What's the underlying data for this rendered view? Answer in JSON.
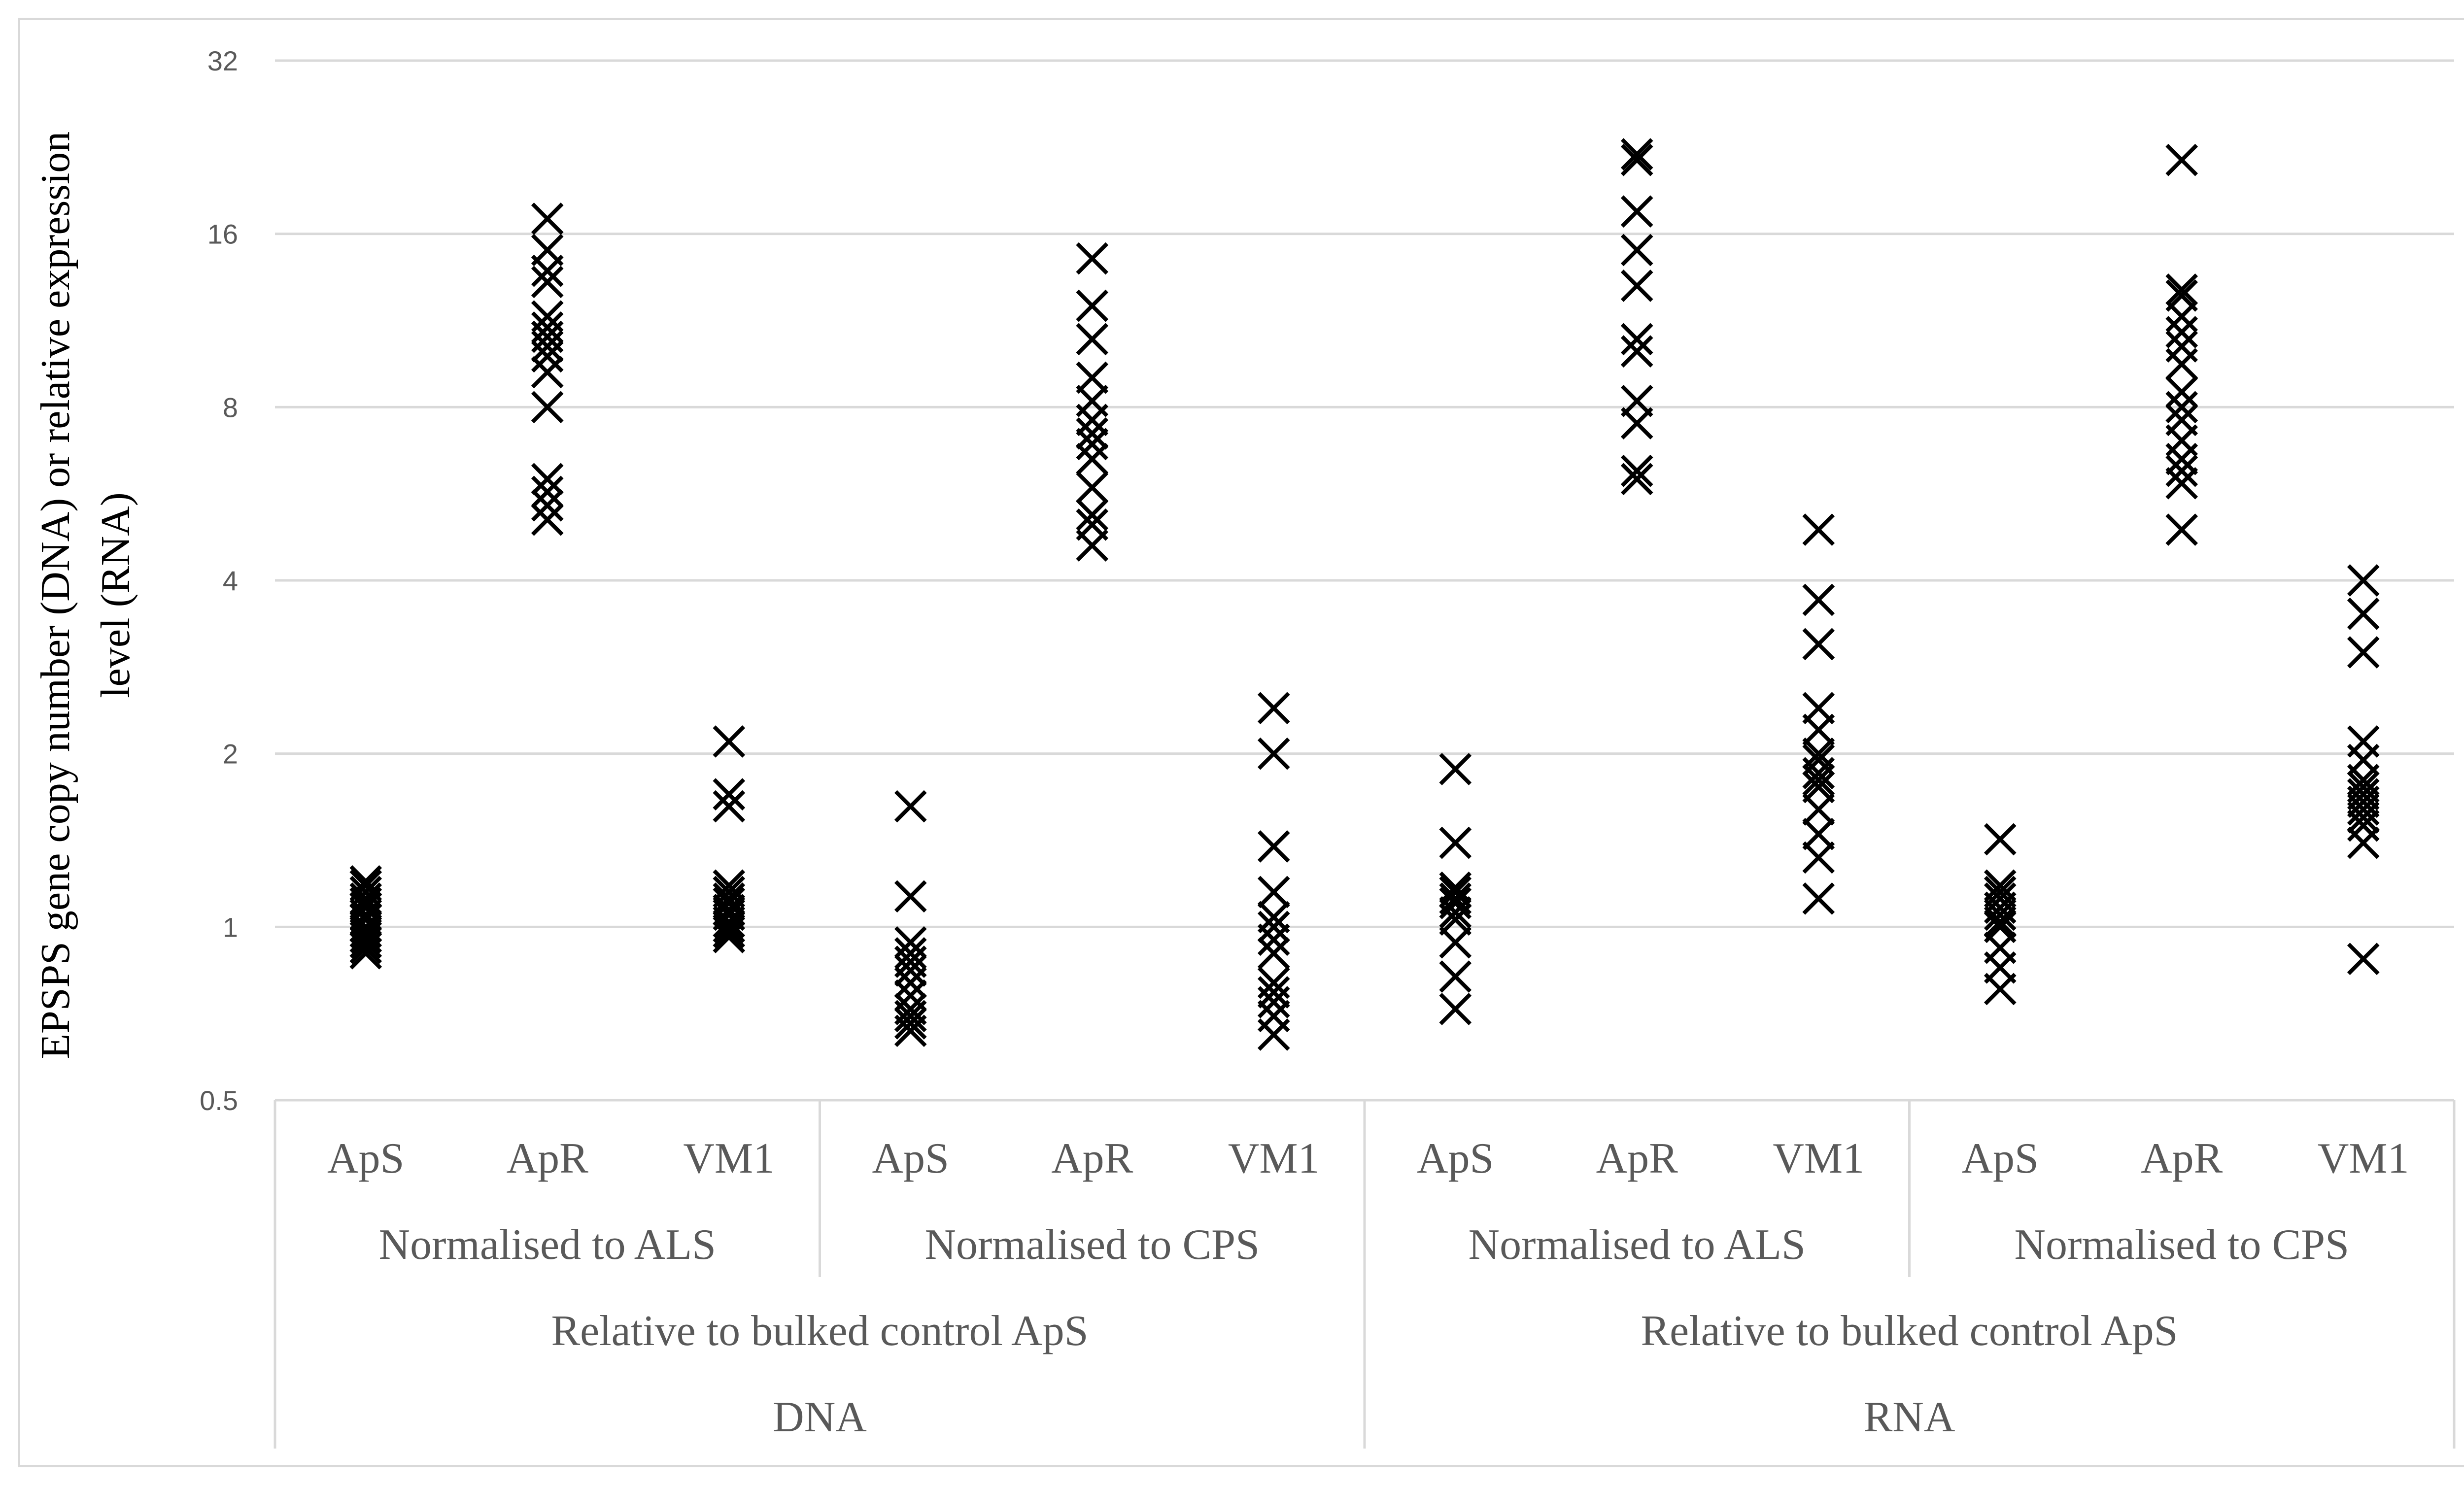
{
  "chart_data": {
    "type": "scatter",
    "marker": "x",
    "ylabel": "EPSPS gene copy number (DNA) or relative expression level (RNA)",
    "ylabel_lines": [
      "EPSPS gene copy number (DNA) or relative expression",
      "level (RNA)"
    ],
    "yscale": "log2",
    "ylim": [
      0.5,
      32
    ],
    "yticks": [
      0.5,
      1,
      2,
      4,
      8,
      16,
      32
    ],
    "ytick_labels": [
      "0.5",
      "1",
      "2",
      "4",
      "8",
      "16",
      "32"
    ],
    "grid": true,
    "x_categories": [
      {
        "label": "ApS",
        "normalisation": "Normalised to ALS",
        "reference": "Relative to bulked control ApS",
        "type": "DNA"
      },
      {
        "label": "ApR",
        "normalisation": "Normalised to ALS",
        "reference": "Relative to bulked control ApS",
        "type": "DNA"
      },
      {
        "label": "VM1",
        "normalisation": "Normalised to ALS",
        "reference": "Relative to bulked control ApS",
        "type": "DNA"
      },
      {
        "label": "ApS",
        "normalisation": "Normalised to CPS",
        "reference": "Relative to bulked control ApS",
        "type": "DNA"
      },
      {
        "label": "ApR",
        "normalisation": "Normalised to CPS",
        "reference": "Relative to bulked control ApS",
        "type": "DNA"
      },
      {
        "label": "VM1",
        "normalisation": "Normalised to CPS",
        "reference": "Relative to bulked control ApS",
        "type": "DNA"
      },
      {
        "label": "ApS",
        "normalisation": "Normalised to ALS",
        "reference": "Relative to bulked control ApS",
        "type": "RNA"
      },
      {
        "label": "ApR",
        "normalisation": "Normalised to ALS",
        "reference": "Relative to bulked control ApS",
        "type": "RNA"
      },
      {
        "label": "VM1",
        "normalisation": "Normalised to ALS",
        "reference": "Relative to bulked control ApS",
        "type": "RNA"
      },
      {
        "label": "ApS",
        "normalisation": "Normalised to CPS",
        "reference": "Relative to bulked control ApS",
        "type": "RNA"
      },
      {
        "label": "ApR",
        "normalisation": "Normalised to CPS",
        "reference": "Relative to bulked control ApS",
        "type": "RNA"
      },
      {
        "label": "VM1",
        "normalisation": "Normalised to CPS",
        "reference": "Relative to bulked control ApS",
        "type": "RNA"
      }
    ],
    "group_labels_level2": [
      {
        "label": "Normalised to ALS",
        "span": 3
      },
      {
        "label": "Normalised to CPS",
        "span": 3
      },
      {
        "label": "Normalised to ALS",
        "span": 3
      },
      {
        "label": "Normalised to CPS",
        "span": 3
      }
    ],
    "group_labels_level3": [
      {
        "label": "Relative to bulked control ApS",
        "span": 6
      },
      {
        "label": "Relative to bulked control ApS",
        "span": 6
      }
    ],
    "group_labels_level4": [
      {
        "label": "DNA",
        "span": 6
      },
      {
        "label": "RNA",
        "span": 6
      }
    ],
    "series_values": [
      [
        1.2,
        1.18,
        1.15,
        1.12,
        1.1,
        1.08,
        1.05,
        1.03,
        1.0,
        0.98,
        0.96,
        0.94,
        0.92,
        0.9
      ],
      [
        17.0,
        15.0,
        13.8,
        13.2,
        11.5,
        11.0,
        10.6,
        10.2,
        9.8,
        9.2,
        8.0,
        6.0,
        5.7,
        5.4,
        5.1
      ],
      [
        2.1,
        1.7,
        1.62,
        1.18,
        1.15,
        1.12,
        1.1,
        1.07,
        1.05,
        1.02,
        1.0,
        0.98,
        0.96
      ],
      [
        1.62,
        1.13,
        0.94,
        0.9,
        0.87,
        0.84,
        0.8,
        0.76,
        0.72,
        0.7,
        0.68,
        0.66
      ],
      [
        14.5,
        12.0,
        10.5,
        9.0,
        8.2,
        7.6,
        7.2,
        6.9,
        6.5,
        5.8,
        5.2,
        5.0,
        4.6
      ],
      [
        2.4,
        2.0,
        1.38,
        1.15,
        1.04,
        1.0,
        0.95,
        0.9,
        0.8,
        0.77,
        0.74,
        0.7,
        0.65
      ],
      [
        1.88,
        1.4,
        1.17,
        1.15,
        1.12,
        1.1,
        1.06,
        1.03,
        0.94,
        0.82,
        0.72
      ],
      [
        22.0,
        21.5,
        17.5,
        15.0,
        13.0,
        10.5,
        10.0,
        8.2,
        7.5,
        6.2,
        6.0
      ],
      [
        4.9,
        3.7,
        3.1,
        2.4,
        2.2,
        2.0,
        1.95,
        1.85,
        1.8,
        1.75,
        1.6,
        1.45,
        1.32,
        1.12
      ],
      [
        1.42,
        1.18,
        1.15,
        1.12,
        1.08,
        1.05,
        1.02,
        1.0,
        0.92,
        0.85,
        0.78
      ],
      [
        21.5,
        12.8,
        12.5,
        11.5,
        10.8,
        10.2,
        9.5,
        8.5,
        8.0,
        7.6,
        7.0,
        6.5,
        6.2,
        5.9,
        4.9
      ],
      [
        4.0,
        3.5,
        3.0,
        2.1,
        1.95,
        1.8,
        1.75,
        1.7,
        1.65,
        1.6,
        1.55,
        1.5,
        1.4,
        0.88
      ]
    ]
  }
}
